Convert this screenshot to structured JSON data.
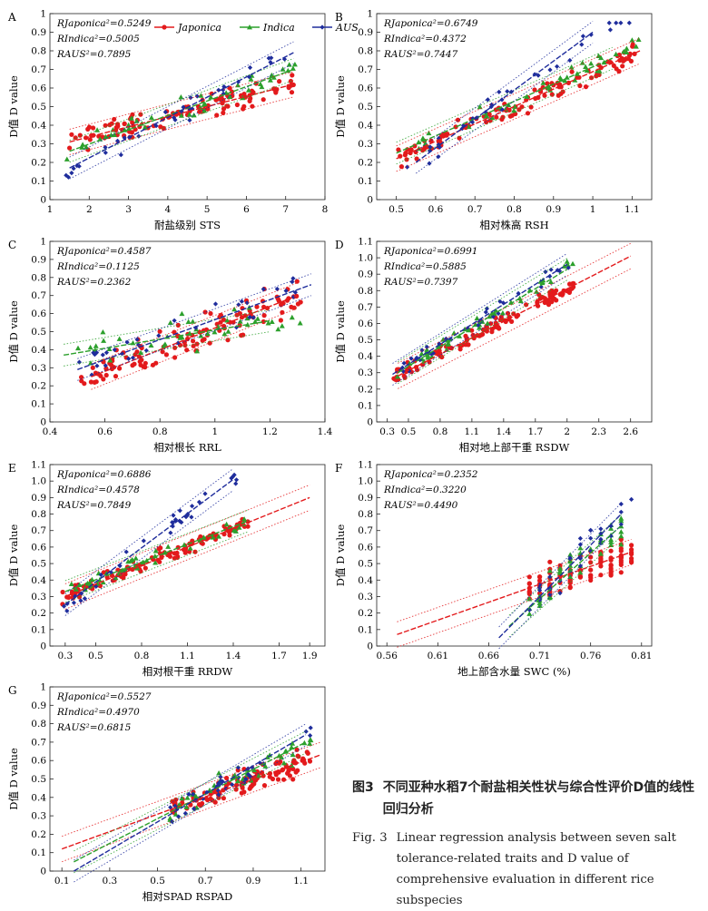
{
  "caption": {
    "cn_label": "图3",
    "cn_text": "不同亚种水稻7个耐盐相关性状与综合性评价D值的线性回归分析",
    "en_label": "Fig. 3",
    "en_text": "Linear regression analysis between seven salt tolerance-related traits and D value of comprehensive evaluation in different rice subspecies"
  },
  "legend": {
    "entries": [
      {
        "name": "Japonica",
        "color": "#e31a1c",
        "marker": "circle"
      },
      {
        "name": "Indica",
        "color": "#2ca02c",
        "marker": "triangle"
      },
      {
        "name": "AUS",
        "color": "#1f2d9c",
        "marker": "diamond"
      }
    ]
  },
  "chart_data": [
    {
      "id": "A",
      "type": "scatter",
      "xlabel": "耐盐级别 STS",
      "ylabel": "D值 D value",
      "xlim": [
        1,
        8
      ],
      "ylim": [
        0,
        1
      ],
      "xticks": [
        1,
        2,
        3,
        4,
        5,
        6,
        7,
        8
      ],
      "yticks": [
        0,
        0.1,
        0.2,
        0.3,
        0.4,
        0.5,
        0.6,
        0.7,
        0.8,
        0.9,
        1
      ],
      "ytick_labels": [
        "0",
        "0.1",
        "0.2",
        "0.3",
        "0.4",
        "0.5",
        "0.6",
        "0.7",
        "0.8",
        "0.9",
        "1"
      ],
      "r2": [
        {
          "subspecies": "Japonica",
          "label": "RJaponica²=0.5249"
        },
        {
          "subspecies": "Indica",
          "label": "RIndica²=0.5005"
        },
        {
          "subspecies": "AUS",
          "label": "RAUS²=0.7895"
        }
      ],
      "fits": {
        "Japonica": {
          "x": [
            1.5,
            7.2
          ],
          "y": [
            0.31,
            0.62
          ]
        },
        "Indica": {
          "x": [
            1.5,
            7.2
          ],
          "y": [
            0.26,
            0.7
          ]
        },
        "AUS": {
          "x": [
            1.5,
            7.2
          ],
          "y": [
            0.17,
            0.79
          ]
        }
      },
      "x_range": [
        1.4,
        7.3
      ],
      "y_center": [
        0.2,
        0.7
      ],
      "spread": 0.09
    },
    {
      "id": "B",
      "type": "scatter",
      "xlabel": "相对株高 RSH",
      "ylabel": "D值 D value",
      "xlim": [
        0.45,
        1.15
      ],
      "ylim": [
        0,
        1
      ],
      "xticks": [
        0.5,
        0.6,
        0.7,
        0.8,
        0.9,
        1.0,
        1.1
      ],
      "yticks": [
        0,
        0.1,
        0.2,
        0.3,
        0.4,
        0.5,
        0.6,
        0.7,
        0.8,
        0.9,
        1
      ],
      "ytick_labels": [
        "0",
        "0.1",
        "0.2",
        "0.3",
        "0.4",
        "0.5",
        "0.6",
        "0.7",
        "0.8",
        "0.9",
        "1"
      ],
      "r2": [
        {
          "subspecies": "Japonica",
          "label": "RJaponica²=0.6749"
        },
        {
          "subspecies": "Indica",
          "label": "RIndica²=0.4372"
        },
        {
          "subspecies": "AUS",
          "label": "RAUS²=0.7447"
        }
      ],
      "fits": {
        "Japonica": {
          "x": [
            0.5,
            1.12
          ],
          "y": [
            0.22,
            0.8
          ]
        },
        "Indica": {
          "x": [
            0.5,
            1.05
          ],
          "y": [
            0.25,
            0.76
          ]
        },
        "AUS": {
          "x": [
            0.55,
            1.0
          ],
          "y": [
            0.2,
            0.9
          ]
        }
      },
      "x_range": [
        0.5,
        1.12
      ],
      "y_center": [
        0.22,
        0.8
      ],
      "spread": 0.08
    },
    {
      "id": "C",
      "type": "scatter",
      "xlabel": "相对根长 RRL",
      "ylabel": "D值 D value",
      "xlim": [
        0.4,
        1.4
      ],
      "ylim": [
        0,
        1
      ],
      "xticks": [
        0.4,
        0.6,
        0.8,
        1.0,
        1.2,
        1.4
      ],
      "yticks": [
        0,
        0.1,
        0.2,
        0.3,
        0.4,
        0.5,
        0.6,
        0.7,
        0.8,
        0.9,
        1
      ],
      "ytick_labels": [
        "0",
        "0.1",
        "0.2",
        "0.3",
        "0.4",
        "0.5",
        "0.6",
        "0.7",
        "0.8",
        "0.9",
        "1"
      ],
      "r2": [
        {
          "subspecies": "Japonica",
          "label": "RJaponica²=0.4587"
        },
        {
          "subspecies": "Indica",
          "label": "RIndica²=0.1125"
        },
        {
          "subspecies": "AUS",
          "label": "RAUS²=0.2362"
        }
      ],
      "fits": {
        "Japonica": {
          "x": [
            0.55,
            1.3
          ],
          "y": [
            0.25,
            0.7
          ]
        },
        "Indica": {
          "x": [
            0.45,
            1.2
          ],
          "y": [
            0.37,
            0.56
          ]
        },
        "AUS": {
          "x": [
            0.5,
            1.35
          ],
          "y": [
            0.29,
            0.76
          ]
        }
      },
      "x_range": [
        0.5,
        1.32
      ],
      "y_center": [
        0.3,
        0.68
      ],
      "spread": 0.14
    },
    {
      "id": "D",
      "type": "scatter",
      "xlabel": "相对地上部干重 RSDW",
      "ylabel": "D值 D value",
      "xlim": [
        0.2,
        2.8
      ],
      "ylim": [
        0,
        1.1
      ],
      "xticks": [
        0.3,
        0.5,
        0.8,
        1.1,
        1.4,
        1.7,
        2.0,
        2.3,
        2.6
      ],
      "yticks": [
        0,
        0.1,
        0.2,
        0.3,
        0.4,
        0.5,
        0.6,
        0.7,
        0.8,
        0.9,
        1.0,
        1.1
      ],
      "ytick_labels": [
        "0",
        "0.1",
        "0.2",
        "0.3",
        "0.4",
        "0.5",
        "0.6",
        "0.7",
        "0.8",
        "0.9",
        "1.0",
        "1.1"
      ],
      "r2": [
        {
          "subspecies": "Japonica",
          "label": "RJaponica²=0.6991"
        },
        {
          "subspecies": "Indica",
          "label": "RIndica²=0.5885"
        },
        {
          "subspecies": "AUS",
          "label": "RAUS²=0.7397"
        }
      ],
      "fits": {
        "Japonica": {
          "x": [
            0.4,
            2.6
          ],
          "y": [
            0.28,
            1.01
          ]
        },
        "Indica": {
          "x": [
            0.4,
            2.0
          ],
          "y": [
            0.3,
            0.93
          ]
        },
        "AUS": {
          "x": [
            0.35,
            2.0
          ],
          "y": [
            0.29,
            0.96
          ]
        }
      },
      "x_range": [
        0.35,
        2.1
      ],
      "y_center": [
        0.3,
        0.85
      ],
      "spread": 0.07
    },
    {
      "id": "E",
      "type": "scatter",
      "xlabel": "相对根干重 RRDW",
      "ylabel": "D值 D value",
      "xlim": [
        0.2,
        2.0
      ],
      "ylim": [
        0,
        1.1
      ],
      "xticks": [
        0.3,
        0.5,
        0.8,
        1.1,
        1.4,
        1.7,
        1.9
      ],
      "yticks": [
        0,
        0.1,
        0.2,
        0.3,
        0.4,
        0.5,
        0.6,
        0.7,
        0.8,
        0.9,
        1.0,
        1.1
      ],
      "ytick_labels": [
        "0",
        "0.1",
        "0.2",
        "0.3",
        "0.4",
        "0.5",
        "0.6",
        "0.7",
        "0.8",
        "0.9",
        "1.0",
        "1.1"
      ],
      "r2": [
        {
          "subspecies": "Japonica",
          "label": "RJaponica²=0.6886"
        },
        {
          "subspecies": "Indica",
          "label": "RIndica²=0.4578"
        },
        {
          "subspecies": "AUS",
          "label": "RAUS²=0.7849"
        }
      ],
      "fits": {
        "Japonica": {
          "x": [
            0.3,
            1.9
          ],
          "y": [
            0.3,
            0.9
          ]
        },
        "Indica": {
          "x": [
            0.3,
            1.5
          ],
          "y": [
            0.33,
            0.76
          ]
        },
        "AUS": {
          "x": [
            0.3,
            1.4
          ],
          "y": [
            0.25,
            1.01
          ]
        }
      },
      "x_range": [
        0.28,
        1.5
      ],
      "y_center": [
        0.3,
        0.8
      ],
      "spread": 0.07
    },
    {
      "id": "F",
      "type": "scatter",
      "xlabel": "地上部含水量 SWC (%)",
      "ylabel": "D值 D value",
      "xlim": [
        0.55,
        0.82
      ],
      "ylim": [
        0,
        1.1
      ],
      "xticks": [
        0.56,
        0.61,
        0.66,
        0.71,
        0.76,
        0.81
      ],
      "yticks": [
        0,
        0.1,
        0.2,
        0.3,
        0.4,
        0.5,
        0.6,
        0.7,
        0.8,
        0.9,
        1.0,
        1.1
      ],
      "ytick_labels": [
        "0",
        "0.1",
        "0.2",
        "0.3",
        "0.4",
        "0.5",
        "0.6",
        "0.7",
        "0.8",
        "0.9",
        "1.0",
        "1.1"
      ],
      "r2": [
        {
          "subspecies": "Japonica",
          "label": "RJaponica²=0.2352"
        },
        {
          "subspecies": "Indica",
          "label": "RIndica²=0.3220"
        },
        {
          "subspecies": "AUS",
          "label": "RAUS²=0.4490"
        }
      ],
      "fits": {
        "Japonica": {
          "x": [
            0.57,
            0.8
          ],
          "y": [
            0.07,
            0.57
          ]
        },
        "Indica": {
          "x": [
            0.68,
            0.79
          ],
          "y": [
            0.12,
            0.73
          ]
        },
        "AUS": {
          "x": [
            0.67,
            0.79
          ],
          "y": [
            0.05,
            0.8
          ]
        }
      },
      "x_range": [
        0.7,
        0.8
      ],
      "y_center": [
        0.3,
        0.55
      ],
      "spread": 0.16
    },
    {
      "id": "G",
      "type": "scatter",
      "xlabel": "相对SPAD RSPAD",
      "ylabel": "D值 D value",
      "xlim": [
        0.05,
        1.2
      ],
      "ylim": [
        0,
        1
      ],
      "xticks": [
        0.1,
        0.3,
        0.5,
        0.7,
        0.9,
        1.1
      ],
      "yticks": [
        0,
        0.1,
        0.2,
        0.3,
        0.4,
        0.5,
        0.6,
        0.7,
        0.8,
        0.9,
        1
      ],
      "ytick_labels": [
        "0",
        "0.1",
        "0.2",
        "0.3",
        "0.4",
        "0.5",
        "0.6",
        "0.7",
        "0.8",
        "0.9",
        "1"
      ],
      "r2": [
        {
          "subspecies": "Japonica",
          "label": "RJaponica²=0.5527"
        },
        {
          "subspecies": "Indica",
          "label": "RIndica²=0.4970"
        },
        {
          "subspecies": "AUS",
          "label": "RAUS²=0.6815"
        }
      ],
      "fits": {
        "Japonica": {
          "x": [
            0.1,
            1.18
          ],
          "y": [
            0.12,
            0.63
          ]
        },
        "Indica": {
          "x": [
            0.15,
            1.12
          ],
          "y": [
            0.05,
            0.7
          ]
        },
        "AUS": {
          "x": [
            0.15,
            1.12
          ],
          "y": [
            0.0,
            0.74
          ]
        }
      },
      "x_range": [
        0.55,
        1.15
      ],
      "y_center": [
        0.3,
        0.65
      ],
      "spread": 0.1
    }
  ]
}
